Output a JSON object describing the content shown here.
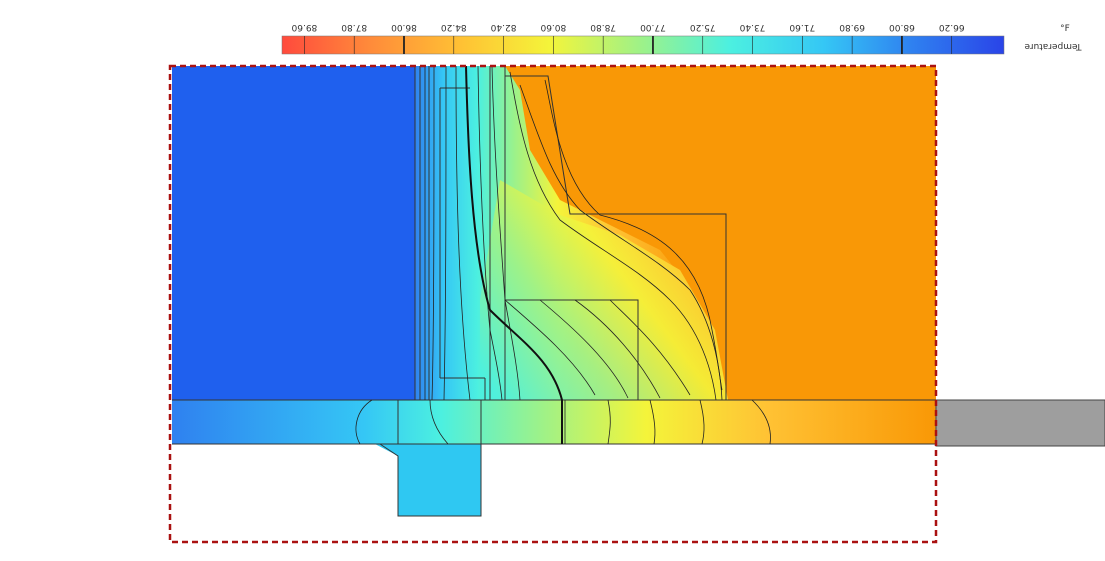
{
  "legend": {
    "unit": "°F",
    "title": "Temperature",
    "mirrored": true,
    "range": [
      64.4,
      91.4
    ],
    "ticks": [
      "89.60",
      "87.80",
      "86.00",
      "84.20",
      "82.40",
      "80.60",
      "78.80",
      "77.00",
      "75.20",
      "73.40",
      "71.60",
      "69.80",
      "68.00",
      "66.20"
    ],
    "major_ticks": [
      "86.00",
      "77.00",
      "68.00"
    ],
    "color_stops": [
      "#ff4a3d",
      "#ff8a3a",
      "#ffc234",
      "#f4f43a",
      "#9cf28a",
      "#4cf0e0",
      "#35c7f5",
      "#2f82f0",
      "#2a44e8"
    ]
  },
  "field": {
    "cold_side_color": "#1f60ee",
    "warm_side_color": "#f99806",
    "slab_extension_color": "#9e9e9e",
    "boundary_box_color": "#aa1111"
  }
}
